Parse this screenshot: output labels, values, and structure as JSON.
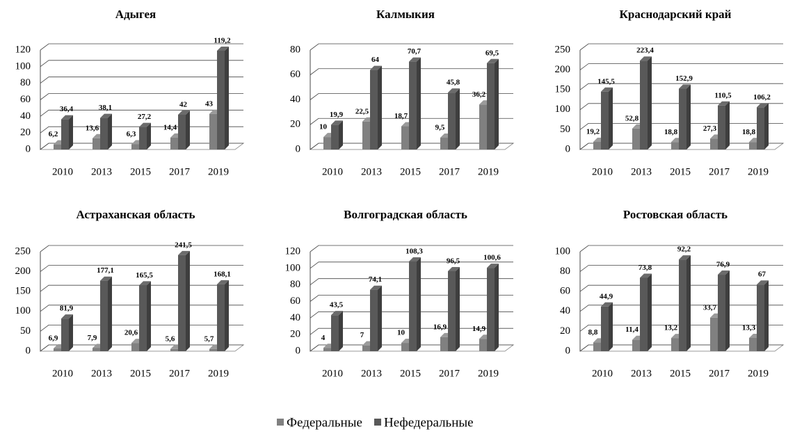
{
  "chart_data": [
    {
      "type": "bar",
      "title": "Адыгея",
      "categories": [
        "2010",
        "2013",
        "2015",
        "2017",
        "2019"
      ],
      "series": [
        {
          "name": "Федеральные",
          "color": "#808080",
          "values": [
            6.2,
            13.6,
            6.3,
            14.4,
            43
          ],
          "value_labels": [
            "6,2",
            "13,6",
            "6,3",
            "14,4",
            "43"
          ]
        },
        {
          "name": "Нефедеральные",
          "color": "#595959",
          "values": [
            36.4,
            38.1,
            27.2,
            42,
            119.2
          ],
          "value_labels": [
            "36,4",
            "38,1",
            "27,2",
            "42",
            "119,2"
          ]
        }
      ],
      "ylim": [
        0,
        120
      ],
      "yticks": [
        0,
        20,
        40,
        60,
        80,
        100,
        120
      ]
    },
    {
      "type": "bar",
      "title": "Калмыкия",
      "categories": [
        "2010",
        "2013",
        "2015",
        "2017",
        "2019"
      ],
      "series": [
        {
          "color": "#808080",
          "values": [
            10,
            22.5,
            18.7,
            9.5,
            36.2
          ],
          "value_labels": [
            "10",
            "22,5",
            "18,7",
            "9,5",
            "36,2"
          ]
        },
        {
          "color": "#595959",
          "values": [
            19.9,
            64,
            70.7,
            45.8,
            69.5
          ],
          "value_labels": [
            "19,9",
            "64",
            "70,7",
            "45,8",
            "69,5"
          ]
        }
      ],
      "ylim": [
        0,
        80
      ],
      "yticks": [
        0,
        20,
        40,
        60,
        80
      ]
    },
    {
      "type": "bar",
      "title": "Краснодарский край",
      "categories": [
        "2010",
        "2013",
        "2015",
        "2017",
        "2019"
      ],
      "series": [
        {
          "color": "#808080",
          "values": [
            19.2,
            52.8,
            18.8,
            27.3,
            18.8
          ],
          "value_labels": [
            "19,2",
            "52,8",
            "18,8",
            "27,3",
            "18,8"
          ]
        },
        {
          "color": "#595959",
          "values": [
            145.5,
            223.4,
            152.9,
            110.5,
            106.2
          ],
          "value_labels": [
            "145,5",
            "223,4",
            "152,9",
            "110,5",
            "106,2"
          ]
        }
      ],
      "ylim": [
        0,
        250
      ],
      "yticks": [
        0,
        50,
        100,
        150,
        200,
        250
      ]
    },
    {
      "type": "bar",
      "title": "Астраханская область",
      "categories": [
        "2010",
        "2013",
        "2015",
        "2017",
        "2019"
      ],
      "series": [
        {
          "color": "#808080",
          "values": [
            6.9,
            7.9,
            20.6,
            5.6,
            5.7
          ],
          "value_labels": [
            "6,9",
            "7,9",
            "20,6",
            "5,6",
            "5,7"
          ]
        },
        {
          "color": "#595959",
          "values": [
            81.9,
            177.1,
            165.5,
            241.5,
            168.1
          ],
          "value_labels": [
            "81,9",
            "177,1",
            "165,5",
            "241,5",
            "168,1"
          ]
        }
      ],
      "ylim": [
        0,
        250
      ],
      "yticks": [
        0,
        50,
        100,
        150,
        200,
        250
      ]
    },
    {
      "type": "bar",
      "title": "Волгоградская область",
      "categories": [
        "2010",
        "2013",
        "2015",
        "2017",
        "2019"
      ],
      "series": [
        {
          "color": "#808080",
          "values": [
            4,
            7,
            10,
            16.9,
            14.9
          ],
          "value_labels": [
            "4",
            "7",
            "10",
            "16,9",
            "14,9"
          ]
        },
        {
          "color": "#595959",
          "values": [
            43.5,
            74.1,
            108.3,
            96.5,
            100.6
          ],
          "value_labels": [
            "43,5",
            "74,1",
            "108,3",
            "96,5",
            "100,6"
          ]
        }
      ],
      "ylim": [
        0,
        120
      ],
      "yticks": [
        0,
        20,
        40,
        60,
        80,
        100,
        120
      ]
    },
    {
      "type": "bar",
      "title": "Ростовская область",
      "categories": [
        "2010",
        "2013",
        "2015",
        "2017",
        "2019"
      ],
      "series": [
        {
          "color": "#808080",
          "values": [
            8.8,
            11.4,
            13.2,
            33.7,
            13.3
          ],
          "value_labels": [
            "8,8",
            "11,4",
            "13,2",
            "33,7",
            "13,3"
          ]
        },
        {
          "color": "#595959",
          "values": [
            44.9,
            73.8,
            92.2,
            76.9,
            67
          ],
          "value_labels": [
            "44,9",
            "73,8",
            "92,2",
            "76,9",
            "67"
          ]
        }
      ],
      "ylim": [
        0,
        100
      ],
      "yticks": [
        0,
        20,
        40,
        60,
        80,
        100
      ]
    }
  ]
}
